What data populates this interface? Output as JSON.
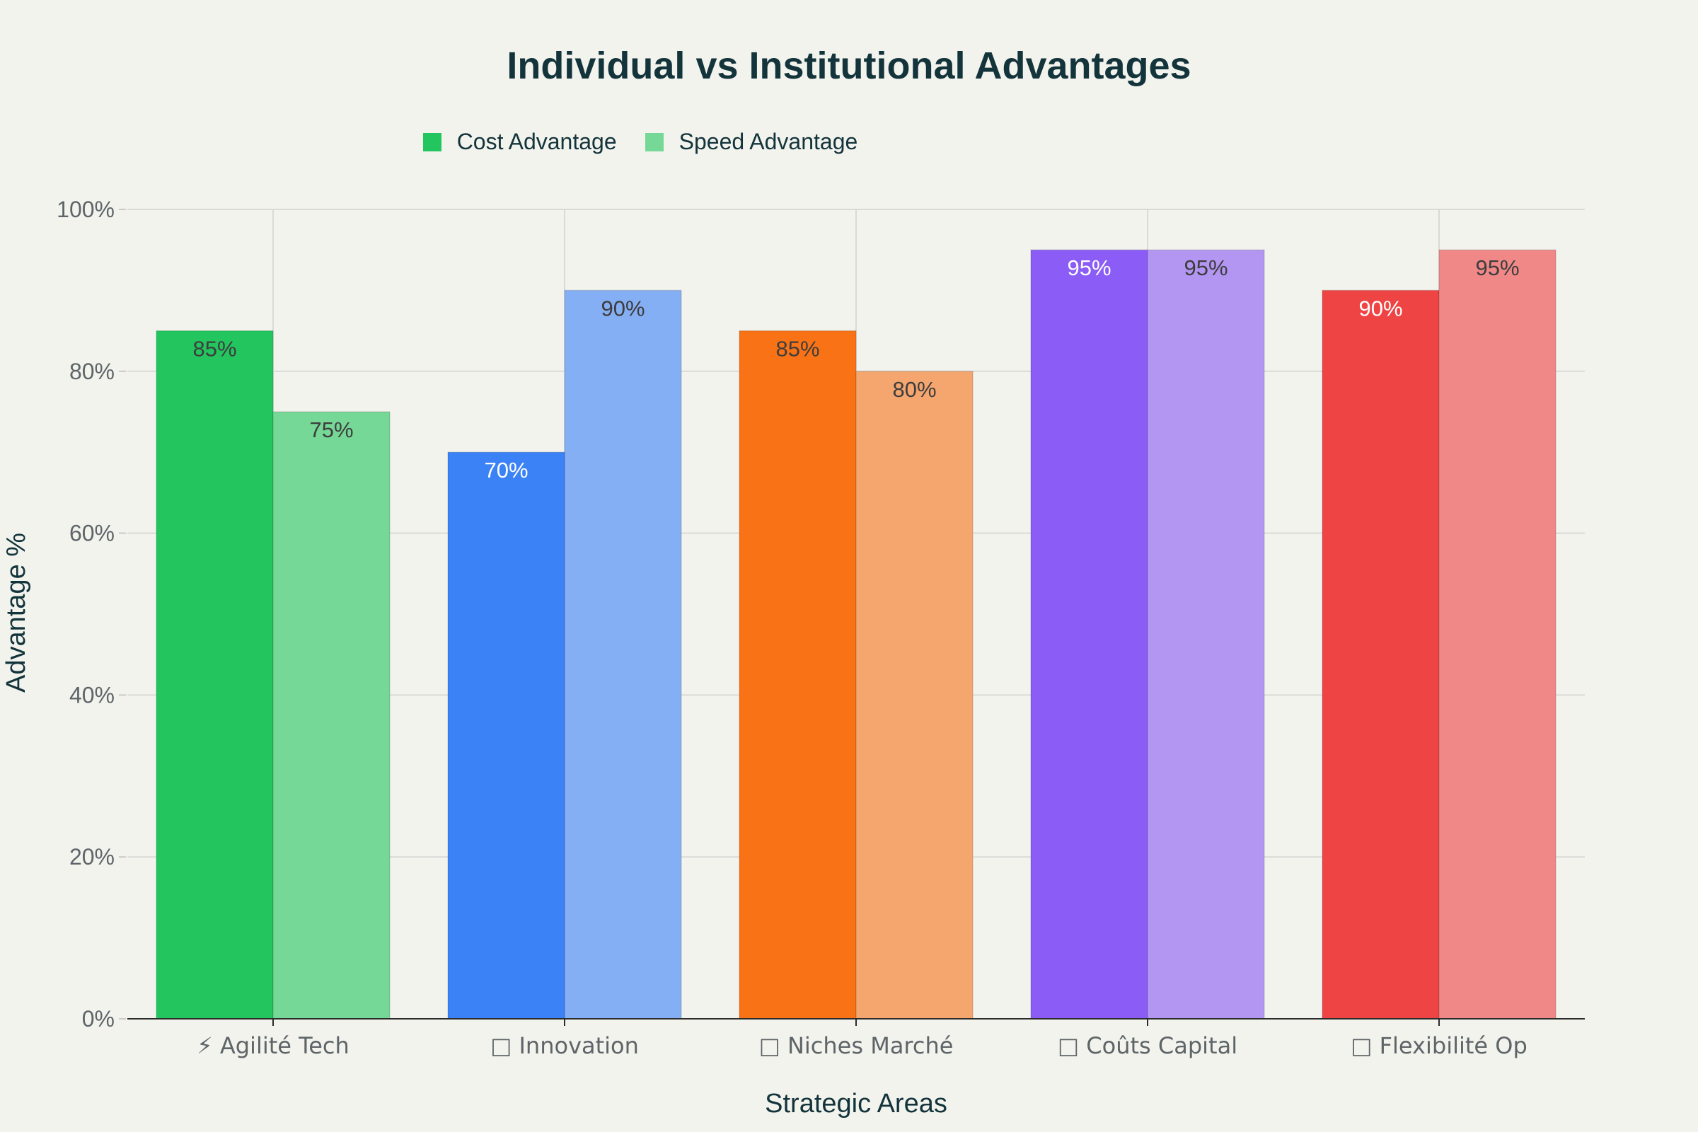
{
  "chart_data": {
    "type": "bar",
    "title": "Individual vs Institutional Advantages",
    "xlabel": "Strategic Areas",
    "ylabel": "Advantage %",
    "ylim": [
      0,
      100
    ],
    "yticks": [
      "0%",
      "20%",
      "40%",
      "60%",
      "80%",
      "100%"
    ],
    "ytick_values": [
      0,
      20,
      40,
      60,
      80,
      100
    ],
    "grid": true,
    "legend_position": "top-center",
    "categories": [
      "⚡ Agilité Tech",
      "\u0000 Innovation",
      "\u0000 Niches Marché",
      "\u0000 Coûts Capital",
      "\u0000 Flexibilité Op"
    ],
    "series": [
      {
        "name": "Cost Advantage",
        "values": [
          85,
          70,
          85,
          95,
          90
        ],
        "labels": [
          "85%",
          "70%",
          "85%",
          "95%",
          "90%"
        ],
        "legend_color": "#22c55e",
        "colors": [
          "#22c55e",
          "#3b82f6",
          "#f97316",
          "#8b5cf6",
          "#ef4444"
        ],
        "label_colors": [
          "#3d3d3d",
          "#ffffff",
          "#3d3d3d",
          "#ffffff",
          "#ffffff"
        ]
      },
      {
        "name": "Speed Advantage",
        "values": [
          75,
          90,
          80,
          95,
          95
        ],
        "labels": [
          "75%",
          "90%",
          "80%",
          "95%",
          "95%"
        ],
        "legend_color": "#76d896",
        "colors": [
          "#76d896",
          "#85aff4",
          "#f5a66e",
          "#b396f2",
          "#f08888"
        ],
        "label_colors": [
          "#3d3d3d",
          "#3d3d3d",
          "#3d3d3d",
          "#3d3d3d",
          "#3d3d3d"
        ]
      }
    ]
  }
}
